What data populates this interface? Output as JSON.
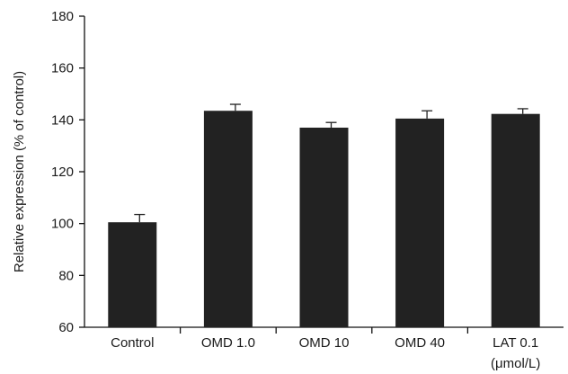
{
  "chart_data": {
    "type": "bar",
    "categories": [
      "Control",
      "OMD 1.0",
      "OMD 10",
      "OMD 40",
      "LAT 0.1"
    ],
    "category_sublabels": [
      "",
      "",
      "",
      "",
      "(μmol/L)"
    ],
    "values": [
      100.5,
      143.5,
      137.0,
      140.5,
      142.3
    ],
    "error": [
      3.0,
      2.5,
      2.0,
      3.0,
      2.0
    ],
    "title": "",
    "xlabel": "",
    "ylabel": "Relative expression (% of control)",
    "ylim": [
      60,
      180
    ],
    "yticks": [
      60,
      80,
      100,
      120,
      140,
      160,
      180
    ],
    "grid": false,
    "legend": "none",
    "bar_color": "#222222",
    "axis_color": "#111111"
  }
}
